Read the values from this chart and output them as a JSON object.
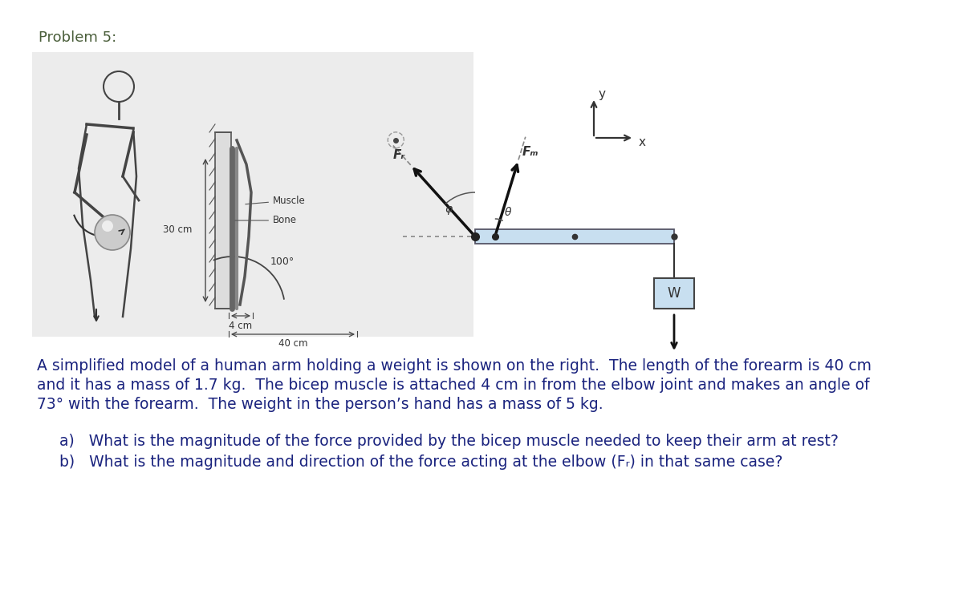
{
  "title": "Problem 5:",
  "title_color": "#4a5e3a",
  "title_fontsize": 13,
  "background_color": "#ffffff",
  "text_color": "#1a237e",
  "text_fontsize": 13.5,
  "diagram_bg": "#ececec",
  "forearm_color": "#c8dff0",
  "forearm_edge_color": "#555566",
  "arrow_color": "#111111",
  "dotted_line_color": "#888888",
  "weight_box_color": "#c8dff0",
  "weight_box_edge": "#444444",
  "coord_color": "#333333",
  "bone_label": "Bone",
  "muscle_label": "Muscle",
  "label_30cm": "30 cm",
  "label_4cm": "4 cm",
  "label_40cm": "40 cm",
  "label_100deg": "100°",
  "Fr_label": "Fᵣ",
  "Fm_label": "Fₘ",
  "phi_label": "φ",
  "theta_label": "θ",
  "W_label": "W",
  "x_label": "x",
  "y_label": "y",
  "para_line1": "A simplified model of a human arm holding a weight is shown on the right.  The length of the forearm is 40 cm",
  "para_line2": "and it has a mass of 1.7 kg.  The bicep muscle is attached 4 cm in from the elbow joint and makes an angle of",
  "para_line3": "73° with the forearm.  The weight in the person’s hand has a mass of 5 kg.",
  "qa": "a)   What is the magnitude of the force provided by the bicep muscle needed to keep their arm at rest?",
  "qb": "b)   What is the magnitude and direction of the force acting at the elbow (Fᵣ) in that same case?"
}
